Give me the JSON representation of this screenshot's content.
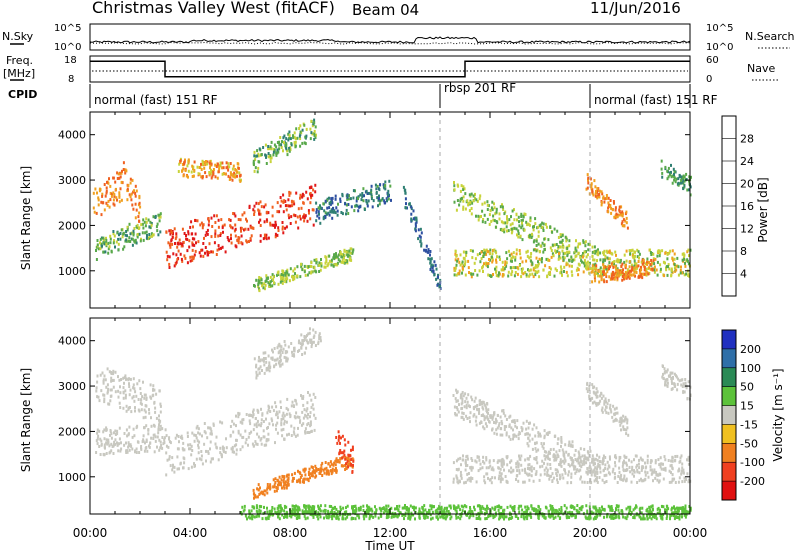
{
  "header": {
    "station": "Christmas Valley West (fitACF)",
    "beam": "Beam 04",
    "date": "11/Jun/2016"
  },
  "noise_panel": {
    "left_label": "N.Sky",
    "right_label": "N.Search",
    "left_ticks": [
      "10^5",
      "10^0"
    ],
    "right_ticks": [
      "10^5",
      "10^0"
    ]
  },
  "freq_panel": {
    "left_label": "Freq.",
    "left_unit": "[MHz]",
    "left_ticks": [
      "18",
      "8"
    ],
    "right_label": "Nave",
    "right_ticks": [
      "60",
      "0"
    ]
  },
  "cpid": {
    "label": "CPID",
    "segments": [
      {
        "label": "normal (fast) 151 RF",
        "start_hour": 0,
        "end_hour": 14
      },
      {
        "label": "rbsp 201 RF",
        "start_hour": 14,
        "end_hour": 20
      },
      {
        "label": "normal (fast) 151 RF",
        "start_hour": 20,
        "end_hour": 24
      }
    ]
  },
  "xaxis": {
    "label": "Time UT",
    "ticks": [
      "00:00",
      "04:00",
      "08:00",
      "12:00",
      "16:00",
      "20:00",
      "00:00"
    ]
  },
  "power_panel": {
    "ylabel": "Slant Range [km]",
    "yticks": [
      "1000",
      "2000",
      "3000",
      "4000"
    ],
    "cbar_label": "Power [dB]",
    "cbar_ticks": [
      "4",
      "8",
      "12",
      "16",
      "20",
      "24",
      "28"
    ],
    "cbar_colors": [
      "#1f1fe0",
      "#2d4fa0",
      "#2f7f73",
      "#58a84a",
      "#c8d33a",
      "#f0a020",
      "#f06020",
      "#e01818"
    ]
  },
  "velocity_panel": {
    "ylabel": "Slant Range [km]",
    "yticks": [
      "1000",
      "2000",
      "3000",
      "4000"
    ],
    "cbar_label": "Velocity [m s⁻¹]",
    "cbar_ticks": [
      "200",
      "100",
      "50",
      "15",
      "-15",
      "-50",
      "-100",
      "-200"
    ],
    "cbar_colors": [
      "#2030c0",
      "#2f6fa8",
      "#2a8a55",
      "#5cc23a",
      "#c8c8c0",
      "#f0c020",
      "#f08020",
      "#f04020",
      "#e01010"
    ]
  },
  "chart_data": {
    "type": "heatmap",
    "x_unit": "hours UT",
    "xlim": [
      0,
      24
    ],
    "ylim_km": [
      180,
      4500
    ],
    "frequency_mhz": [
      {
        "start_hour": 0,
        "end_hour": 3,
        "value": 16
      },
      {
        "start_hour": 3,
        "end_hour": 15,
        "value": 10
      },
      {
        "start_hour": 15,
        "end_hour": 24,
        "value": 16
      }
    ],
    "power_regions": [
      {
        "t0": 0.1,
        "t1": 2.0,
        "r_start": 2500,
        "r_end": 3200,
        "r_end_end": 2300,
        "w": 350,
        "db": 24
      },
      {
        "t0": 3.0,
        "t1": 9.0,
        "r_start": 1500,
        "r_end": 2500,
        "w": 450,
        "db": 28
      },
      {
        "t0": 0.2,
        "t1": 2.8,
        "r_start": 1500,
        "r_end": 2100,
        "w": 250,
        "db": 14
      },
      {
        "t0": 3.5,
        "t1": 6.0,
        "r_start": 3300,
        "r_end": 3200,
        "w": 200,
        "db": 22
      },
      {
        "t0": 6.5,
        "t1": 9.0,
        "r_start": 3400,
        "r_end": 4200,
        "w": 250,
        "db": 14
      },
      {
        "t0": 6.5,
        "t1": 10.5,
        "r_start": 700,
        "r_end": 1400,
        "w": 150,
        "db": 16
      },
      {
        "t0": 9.0,
        "t1": 12.0,
        "r_start": 2300,
        "r_end": 2800,
        "w": 250,
        "db": 10
      },
      {
        "t0": 14.5,
        "t1": 20.5,
        "r_start": 2700,
        "r_end": 1200,
        "w": 300,
        "db": 16
      },
      {
        "t0": 14.5,
        "t1": 24.0,
        "r_start": 1200,
        "r_end": 1200,
        "w": 300,
        "db": 18
      },
      {
        "t0": 19.8,
        "t1": 21.5,
        "r_start": 3000,
        "r_end": 2100,
        "w": 200,
        "db": 24
      },
      {
        "t0": 20.0,
        "t1": 22.5,
        "r_start": 950,
        "r_end": 1100,
        "w": 200,
        "db": 24
      },
      {
        "t0": 22.8,
        "t1": 24.0,
        "r_start": 3300,
        "r_end": 2900,
        "w": 200,
        "db": 12
      },
      {
        "t0": 12.5,
        "t1": 14.0,
        "r_start": 2700,
        "r_end": 700,
        "w": 200,
        "db": 8
      }
    ],
    "velocity_regions": [
      {
        "t0": 0.2,
        "t1": 2.8,
        "r_start": 3100,
        "r_end": 2600,
        "w": 400,
        "v": 0
      },
      {
        "t0": 0.2,
        "t1": 3.0,
        "r_start": 1800,
        "r_end": 1900,
        "w": 300,
        "v": 0
      },
      {
        "t0": 3.0,
        "t1": 9.0,
        "r_start": 1500,
        "r_end": 2500,
        "w": 450,
        "v": 0
      },
      {
        "t0": 6.5,
        "t1": 9.2,
        "r_start": 3400,
        "r_end": 4200,
        "w": 250,
        "v": 0
      },
      {
        "t0": 6.5,
        "t1": 10.5,
        "r_start": 700,
        "r_end": 1400,
        "w": 150,
        "v": -60
      },
      {
        "t0": 9.8,
        "t1": 10.5,
        "r_start": 1800,
        "r_end": 1400,
        "w": 300,
        "v": -110
      },
      {
        "t0": 14.5,
        "t1": 20.5,
        "r_start": 2700,
        "r_end": 1200,
        "w": 300,
        "v": 0
      },
      {
        "t0": 14.5,
        "t1": 24.0,
        "r_start": 1200,
        "r_end": 1200,
        "w": 300,
        "v": 0
      },
      {
        "t0": 19.8,
        "t1": 21.5,
        "r_start": 3000,
        "r_end": 2100,
        "w": 200,
        "v": 0
      },
      {
        "t0": 22.8,
        "t1": 24.0,
        "r_start": 3300,
        "r_end": 2900,
        "w": 200,
        "v": 0
      },
      {
        "t0": 6.0,
        "t1": 24.0,
        "r_start": 250,
        "r_end": 250,
        "w": 150,
        "v": 30
      }
    ]
  }
}
